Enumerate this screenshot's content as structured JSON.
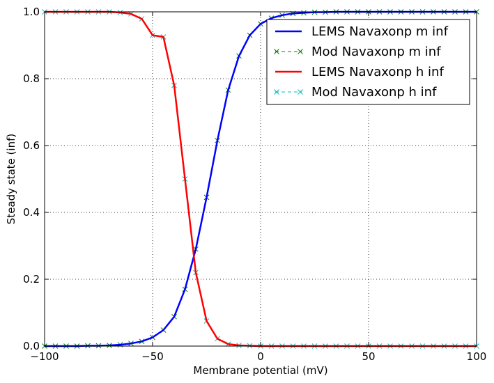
{
  "chart_data": {
    "type": "line",
    "title": "",
    "xlabel": "Membrane potential (mV)",
    "ylabel": "Steady state (inf)",
    "xlim": [
      -100,
      100
    ],
    "ylim": [
      0.0,
      1.0
    ],
    "xticks": [
      -100,
      -50,
      0,
      50,
      100
    ],
    "xtick_labels": [
      "−100",
      "−50",
      "0",
      "50",
      "100"
    ],
    "yticks": [
      0.0,
      0.2,
      0.4,
      0.6,
      0.8,
      1.0
    ],
    "ytick_labels": [
      "0.0",
      "0.2",
      "0.4",
      "0.6",
      "0.8",
      "1.0"
    ],
    "grid": true,
    "legend_position": "top-right",
    "series": [
      {
        "name": "LEMS Navaxonp m inf",
        "style": "solid-line",
        "color": "#0000ff",
        "x": [
          -100,
          -95,
          -90,
          -85,
          -80,
          -75,
          -70,
          -65,
          -60,
          -55,
          -50,
          -45,
          -40,
          -35,
          -30,
          -25,
          -20,
          -15,
          -10,
          -5,
          0,
          5,
          10,
          15,
          20,
          25,
          30,
          35,
          40,
          45,
          50,
          55,
          60,
          65,
          70,
          75,
          80,
          85,
          90,
          95,
          100
        ],
        "y": [
          0.0,
          0.0,
          0.0,
          0.0,
          0.001,
          0.001,
          0.002,
          0.004,
          0.008,
          0.014,
          0.026,
          0.048,
          0.088,
          0.17,
          0.29,
          0.445,
          0.615,
          0.766,
          0.868,
          0.93,
          0.964,
          0.981,
          0.99,
          0.995,
          0.997,
          0.999,
          0.999,
          1.0,
          1.0,
          1.0,
          1.0,
          1.0,
          1.0,
          1.0,
          1.0,
          1.0,
          1.0,
          1.0,
          1.0,
          1.0,
          1.0
        ]
      },
      {
        "name": "Mod Navaxonp m inf",
        "style": "dashed-x",
        "color": "#008000",
        "x": [
          -100,
          -95,
          -90,
          -85,
          -80,
          -75,
          -70,
          -65,
          -60,
          -55,
          -50,
          -45,
          -40,
          -35,
          -30,
          -25,
          -20,
          -15,
          -10,
          -5,
          0,
          5,
          10,
          15,
          20,
          25,
          30,
          35,
          40,
          45,
          50,
          55,
          60,
          65,
          70,
          75,
          80,
          85,
          90,
          95,
          100
        ],
        "y": [
          0.0,
          0.0,
          0.0,
          0.0,
          0.001,
          0.001,
          0.002,
          0.004,
          0.008,
          0.014,
          0.026,
          0.048,
          0.088,
          0.17,
          0.29,
          0.445,
          0.615,
          0.766,
          0.868,
          0.93,
          0.964,
          0.981,
          0.99,
          0.995,
          0.997,
          0.999,
          0.999,
          1.0,
          1.0,
          1.0,
          1.0,
          1.0,
          1.0,
          1.0,
          1.0,
          1.0,
          1.0,
          1.0,
          1.0,
          1.0,
          1.0
        ]
      },
      {
        "name": "LEMS Navaxonp h inf",
        "style": "solid-line",
        "color": "#ff0000",
        "x": [
          -100,
          -95,
          -90,
          -85,
          -80,
          -75,
          -70,
          -65,
          -60,
          -55,
          -50,
          -45,
          -40,
          -35,
          -30,
          -25,
          -20,
          -15,
          -10,
          -5,
          0,
          5,
          10,
          15,
          20,
          25,
          30,
          35,
          40,
          45,
          50,
          55,
          60,
          65,
          70,
          75,
          80,
          85,
          90,
          95,
          100
        ],
        "y": [
          1.0,
          1.0,
          1.0,
          1.0,
          1.0,
          1.0,
          1.0,
          0.998,
          0.994,
          0.979,
          0.93,
          0.925,
          0.78,
          0.5,
          0.22,
          0.075,
          0.022,
          0.006,
          0.002,
          0.001,
          0.0,
          0.0,
          0.0,
          0.0,
          0.0,
          0.0,
          0.0,
          0.0,
          0.0,
          0.0,
          0.0,
          0.0,
          0.0,
          0.0,
          0.0,
          0.0,
          0.0,
          0.0,
          0.0,
          0.0,
          0.0
        ]
      },
      {
        "name": "Mod Navaxonp h inf",
        "style": "dashed-x",
        "color": "#00bfbf",
        "x": [
          -100,
          -95,
          -90,
          -85,
          -80,
          -75,
          -70,
          -65,
          -60,
          -55,
          -50,
          -45,
          -40,
          -35,
          -30,
          -25,
          -20,
          -15,
          -10,
          -5,
          0,
          5,
          10,
          15,
          20,
          25,
          30,
          35,
          40,
          45,
          50,
          55,
          60,
          65,
          70,
          75,
          80,
          85,
          90,
          95,
          100
        ],
        "y": [
          1.0,
          1.0,
          1.0,
          1.0,
          1.0,
          1.0,
          1.0,
          0.998,
          0.994,
          0.979,
          0.93,
          0.925,
          0.78,
          0.5,
          0.22,
          0.075,
          0.022,
          0.006,
          0.002,
          0.001,
          0.0,
          0.0,
          0.0,
          0.0,
          0.0,
          0.0,
          0.0,
          0.0,
          0.0,
          0.0,
          0.0,
          0.0,
          0.0,
          0.0,
          0.0,
          0.0,
          0.0,
          0.0,
          0.0,
          0.0,
          0.0
        ]
      }
    ]
  }
}
